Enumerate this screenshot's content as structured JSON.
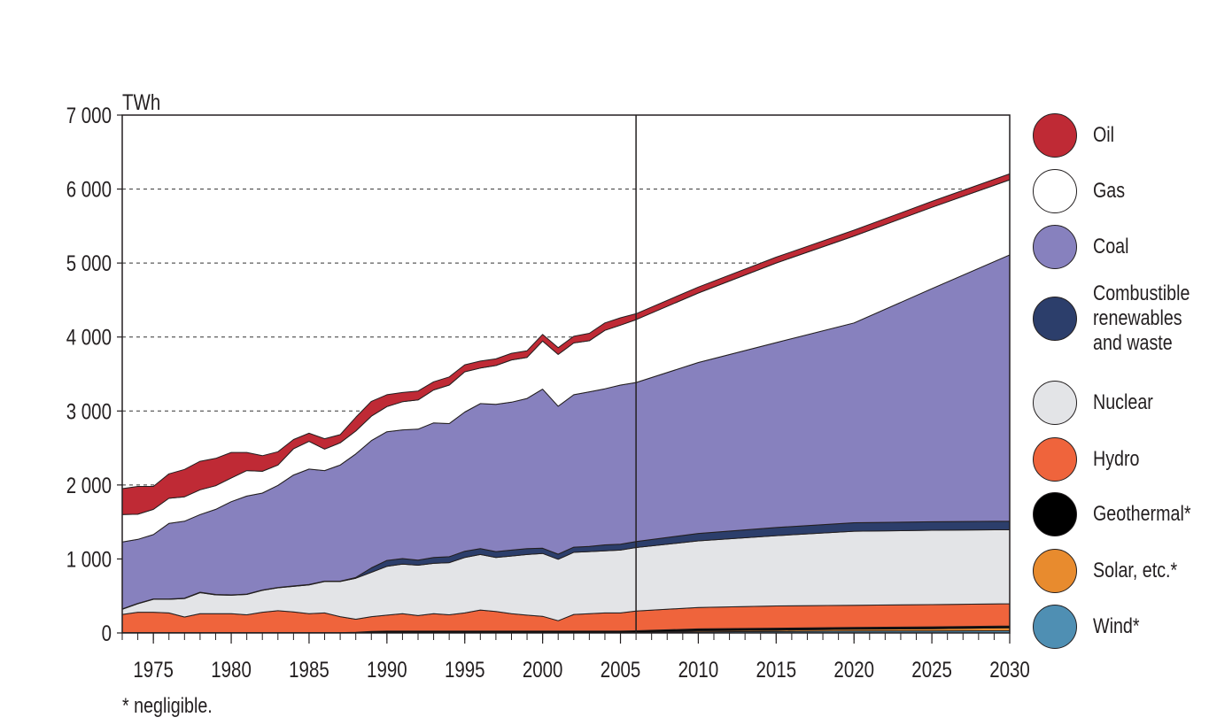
{
  "chart_data": {
    "type": "area",
    "stacked": true,
    "ylabel": "TWh",
    "ylim": [
      0,
      7000
    ],
    "xlim": [
      1973,
      2030
    ],
    "projection_start": 2006,
    "ytick_labels": [
      "0",
      "1 000",
      "2 000",
      "3 000",
      "4 000",
      "5 000",
      "6 000",
      "7 000"
    ],
    "ytick_values": [
      0,
      1000,
      2000,
      3000,
      4000,
      5000,
      6000,
      7000
    ],
    "xtick_labels": [
      "1975",
      "1980",
      "1985",
      "1990",
      "1995",
      "2000",
      "2005",
      "2010",
      "2015",
      "2020",
      "2025",
      "2030"
    ],
    "xtick_values": [
      1975,
      1980,
      1985,
      1990,
      1995,
      2000,
      2005,
      2010,
      2015,
      2020,
      2025,
      2030
    ],
    "grid": "dashed horizontal",
    "legend_position": "right",
    "x": [
      1973,
      1974,
      1975,
      1976,
      1977,
      1978,
      1979,
      1980,
      1981,
      1982,
      1983,
      1984,
      1985,
      1986,
      1987,
      1988,
      1989,
      1990,
      1991,
      1992,
      1993,
      1994,
      1995,
      1996,
      1997,
      1998,
      1999,
      2000,
      2001,
      2002,
      2003,
      2004,
      2005,
      2006,
      2010,
      2015,
      2020,
      2025,
      2030
    ],
    "series": [
      {
        "name": "Wind*",
        "color": "#4f8fb3",
        "values": [
          0,
          0,
          0,
          0,
          0,
          0,
          0,
          0,
          0,
          0,
          0,
          0,
          0,
          0,
          0,
          0,
          0,
          0,
          0,
          0,
          0,
          0,
          0,
          0,
          0,
          0,
          0,
          0,
          0,
          0,
          0,
          0,
          0,
          2,
          15,
          20,
          25,
          28,
          30
        ]
      },
      {
        "name": "Solar, etc.*",
        "color": "#e88b2e",
        "values": [
          0,
          0,
          0,
          0,
          0,
          0,
          0,
          0,
          0,
          0,
          0,
          0,
          0,
          0,
          0,
          0,
          0,
          0,
          0,
          0,
          0,
          0,
          0,
          0,
          0,
          0,
          0,
          0,
          0,
          0,
          0,
          0,
          0,
          3,
          15,
          20,
          25,
          30,
          40
        ]
      },
      {
        "name": "Geothermal*",
        "color": "#000000",
        "values": [
          5,
          5,
          5,
          5,
          5,
          5,
          5,
          5,
          5,
          5,
          5,
          5,
          5,
          5,
          5,
          10,
          20,
          25,
          25,
          25,
          25,
          25,
          25,
          25,
          25,
          25,
          25,
          25,
          25,
          25,
          25,
          25,
          25,
          25,
          25,
          25,
          25,
          25,
          25
        ]
      },
      {
        "name": "Hydro",
        "color": "#ef643c",
        "values": [
          245,
          275,
          275,
          265,
          210,
          255,
          255,
          255,
          240,
          275,
          295,
          280,
          255,
          265,
          215,
          175,
          200,
          215,
          235,
          210,
          235,
          220,
          245,
          285,
          265,
          235,
          215,
          200,
          140,
          225,
          235,
          245,
          245,
          265,
          290,
          300,
          300,
          300,
          300
        ]
      },
      {
        "name": "Nuclear",
        "color": "#e3e4e7",
        "values": [
          70,
          115,
          175,
          185,
          250,
          285,
          255,
          250,
          275,
          295,
          310,
          345,
          390,
          425,
          475,
          555,
          600,
          660,
          670,
          680,
          680,
          705,
          750,
          750,
          730,
          780,
          820,
          850,
          830,
          840,
          840,
          840,
          850,
          860,
          900,
          950,
          1000,
          1005,
          1000
        ]
      },
      {
        "name": "Combustible renewables and waste",
        "color": "#2c3e6b",
        "values": [
          5,
          5,
          5,
          5,
          5,
          5,
          5,
          5,
          5,
          5,
          5,
          5,
          5,
          5,
          5,
          10,
          60,
          80,
          75,
          70,
          80,
          80,
          85,
          80,
          80,
          80,
          80,
          70,
          70,
          70,
          70,
          80,
          80,
          80,
          100,
          110,
          115,
          115,
          115
        ]
      },
      {
        "name": "Coal",
        "color": "#8781be",
        "values": [
          905,
          865,
          870,
          1020,
          1040,
          1050,
          1150,
          1260,
          1325,
          1310,
          1380,
          1500,
          1560,
          1495,
          1570,
          1670,
          1720,
          1740,
          1740,
          1770,
          1820,
          1800,
          1880,
          1960,
          1990,
          2000,
          2030,
          2150,
          2000,
          2060,
          2090,
          2110,
          2150,
          2150,
          2310,
          2500,
          2700,
          3150,
          3600
        ]
      },
      {
        "name": "Gas",
        "color": "#ffffff",
        "values": [
          370,
          340,
          340,
          340,
          330,
          335,
          320,
          320,
          345,
          295,
          275,
          355,
          375,
          290,
          300,
          310,
          330,
          340,
          380,
          395,
          445,
          520,
          545,
          480,
          525,
          570,
          555,
          650,
          700,
          700,
          690,
          790,
          810,
          850,
          940,
          1075,
          1175,
          1100,
          1015
        ]
      },
      {
        "name": "Oil",
        "color": "#bf2a35",
        "values": [
          350,
          375,
          310,
          330,
          370,
          385,
          370,
          345,
          245,
          210,
          180,
          125,
          110,
          140,
          110,
          185,
          200,
          160,
          125,
          120,
          110,
          110,
          95,
          95,
          90,
          90,
          90,
          90,
          90,
          90,
          100,
          100,
          100,
          80,
          80,
          80,
          80,
          80,
          80
        ]
      }
    ],
    "footnote": "* negligible."
  }
}
